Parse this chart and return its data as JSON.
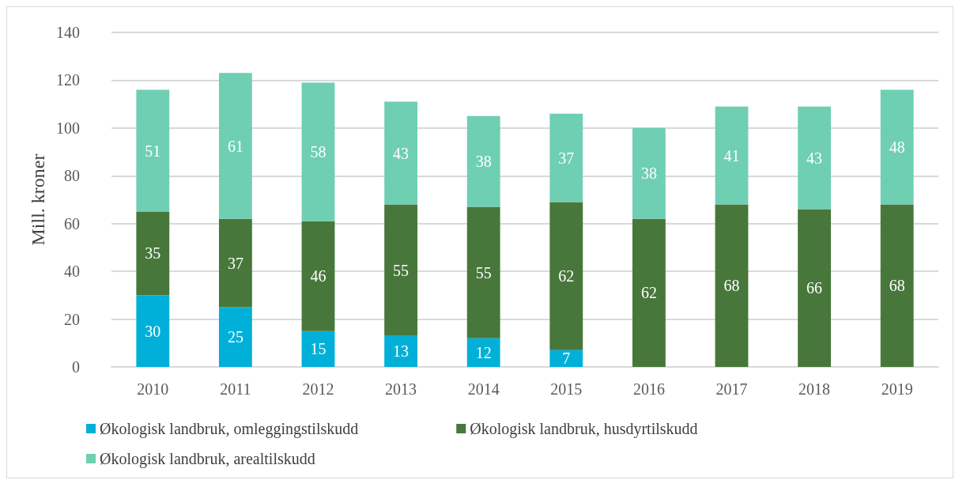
{
  "chart_data": {
    "type": "bar",
    "stacked": true,
    "ylabel": "Mill. kroner",
    "categories": [
      "2010",
      "2011",
      "2012",
      "2013",
      "2014",
      "2015",
      "2016",
      "2017",
      "2018",
      "2019"
    ],
    "series": [
      {
        "name": "Økologisk landbruk, omleggingstilskudd",
        "color": "#00b0d8",
        "values": [
          30,
          25,
          15,
          13,
          12,
          7,
          null,
          0,
          null,
          0
        ],
        "value_labels": [
          "30",
          "25",
          "15",
          "13",
          "12",
          "7",
          null,
          null,
          null,
          null
        ]
      },
      {
        "name": "Økologisk landbruk, husdyrtilskudd",
        "color": "#47773a",
        "values": [
          35,
          37,
          46,
          55,
          55,
          62,
          62,
          68,
          66,
          68
        ],
        "value_labels": [
          "35",
          "37",
          "46",
          "55",
          "55",
          "62",
          "62",
          "68",
          "66",
          "68"
        ]
      },
      {
        "name": "Økologisk landbruk, arealtilskudd",
        "color": "#6fcfb2",
        "values": [
          51,
          61,
          58,
          43,
          38,
          37,
          38,
          41,
          43,
          48
        ],
        "value_labels": [
          "51",
          "61",
          "58",
          "43",
          "38",
          "37",
          "38",
          "41",
          "43",
          "48"
        ]
      }
    ],
    "ylim": [
      0,
      140
    ],
    "yticks": [
      0,
      20,
      40,
      60,
      80,
      100,
      120,
      140
    ],
    "grid": "y",
    "legend": "bottom"
  }
}
